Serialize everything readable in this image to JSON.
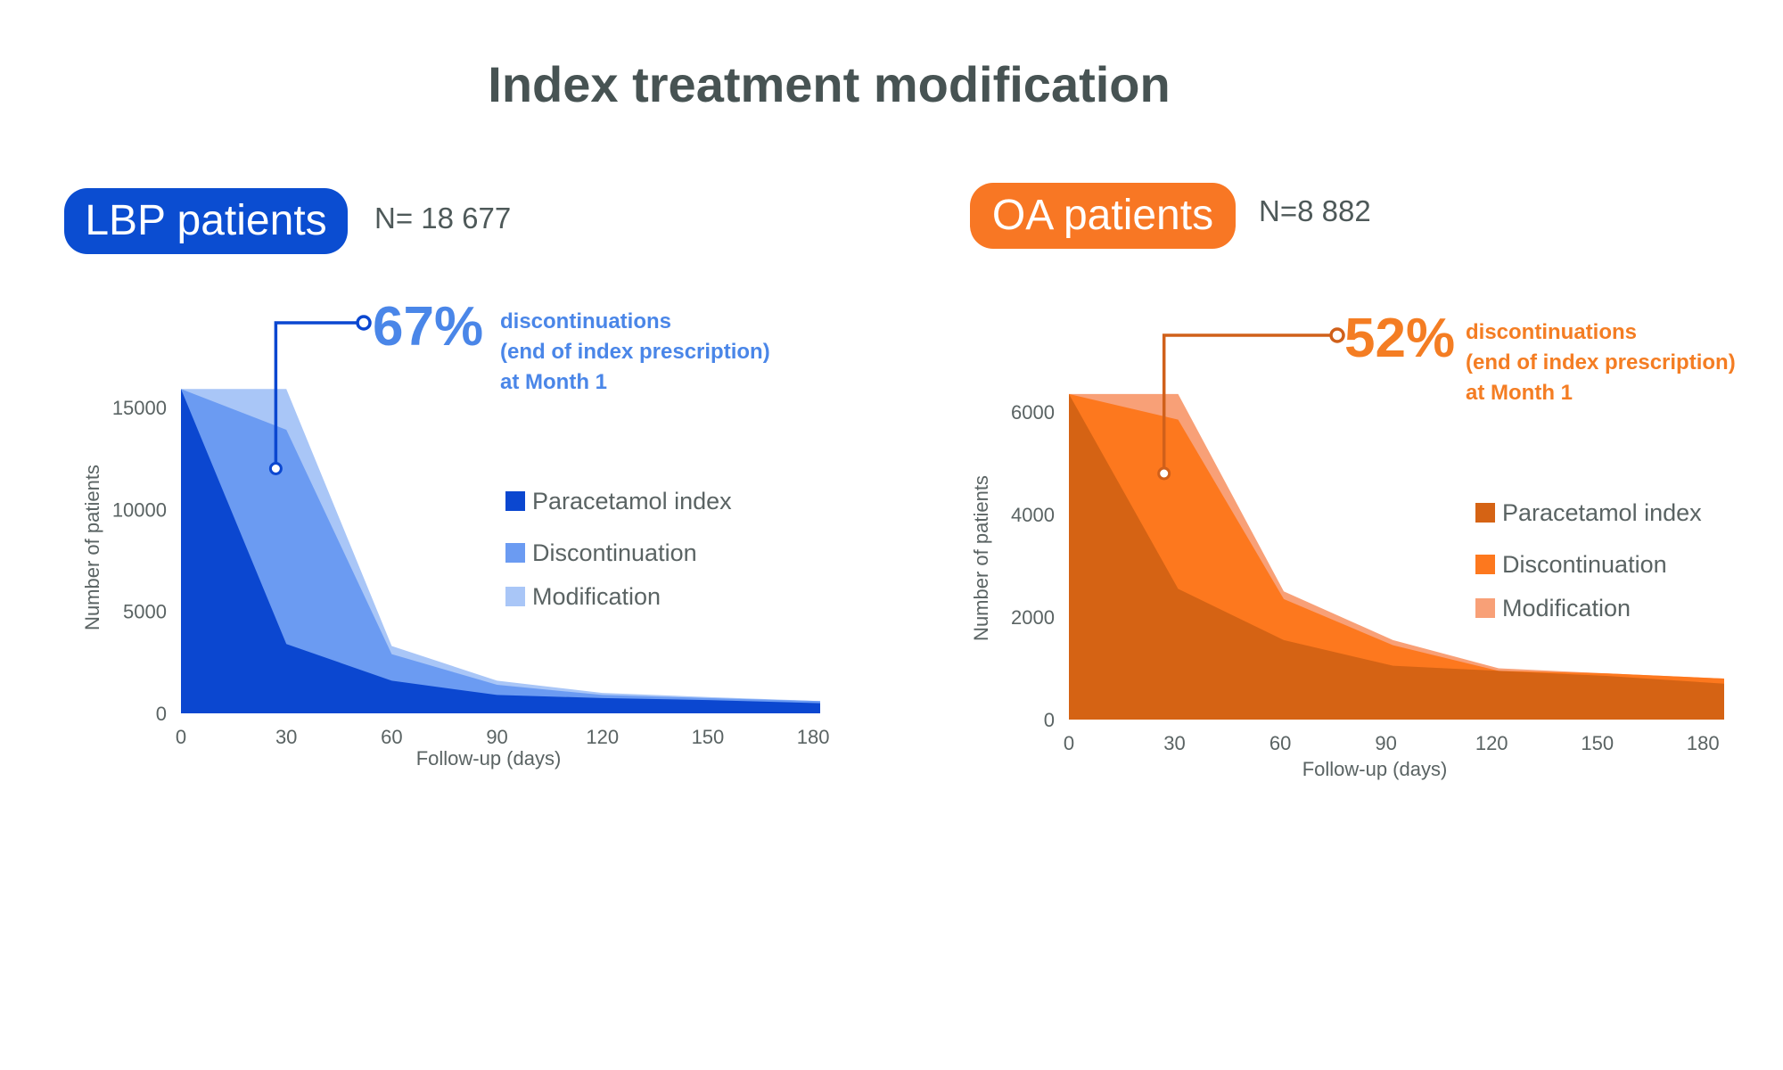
{
  "title": "Index treatment modification",
  "panels": [
    {
      "id": "lbp",
      "label": "LBP patients",
      "n_text": "N= 18 677",
      "callout_value": "67%",
      "callout_lines": [
        "discontinuations",
        "(end of index prescription)",
        "at Month 1"
      ]
    },
    {
      "id": "oa",
      "label": "OA patients",
      "n_text": "N=8 882",
      "callout_value": "52%",
      "callout_lines": [
        "discontinuations",
        "(end of index prescription)",
        "at Month 1"
      ]
    }
  ],
  "chart_data": [
    {
      "type": "area",
      "title": "LBP patients",
      "xlabel": "Follow-up (days)",
      "ylabel": "Number of patients",
      "xlim": [
        0,
        182
      ],
      "ylim": [
        0,
        16000
      ],
      "x_ticks": [
        0,
        30,
        60,
        90,
        120,
        150,
        180
      ],
      "y_ticks": [
        0,
        5000,
        10000,
        15000
      ],
      "legend_position": "right",
      "series": [
        {
          "name": "Modification",
          "color": "#a9c6f7",
          "x": [
            0,
            30,
            60,
            90,
            120,
            150,
            182
          ],
          "values": [
            15900,
            15900,
            3300,
            1600,
            1000,
            800,
            600
          ]
        },
        {
          "name": "Discontinuation",
          "color": "#6b9bf2",
          "x": [
            0,
            30,
            60,
            90,
            120,
            150,
            182
          ],
          "values": [
            15900,
            13900,
            2900,
            1400,
            900,
            750,
            600
          ]
        },
        {
          "name": "Paracetamol index",
          "color": "#0b47d0",
          "x": [
            0,
            30,
            60,
            90,
            120,
            150,
            182
          ],
          "values": [
            15900,
            3400,
            1600,
            900,
            750,
            650,
            500
          ]
        }
      ],
      "legend": [
        "Paracetamol index",
        "Discontinuation",
        "Modification"
      ],
      "callout_point": {
        "x": 27,
        "y": 12000
      },
      "accent": "#0b47d0",
      "callout_color": "#4a86e8"
    },
    {
      "type": "area",
      "title": "OA patients",
      "xlabel": "Follow-up (days)",
      "ylabel": "Number of patients",
      "xlim": [
        0,
        186
      ],
      "ylim": [
        0,
        6000
      ],
      "x_ticks": [
        0,
        30,
        60,
        90,
        120,
        150,
        180
      ],
      "y_ticks": [
        0,
        2000,
        4000,
        6000
      ],
      "legend_position": "right",
      "series": [
        {
          "name": "Modification",
          "color": "#f8a077",
          "x": [
            0,
            31,
            61,
            92,
            122,
            153,
            186
          ],
          "values": [
            6350,
            6350,
            2500,
            1550,
            1000,
            900,
            800
          ]
        },
        {
          "name": "Discontinuation",
          "color": "#fd781e",
          "x": [
            0,
            31,
            61,
            92,
            122,
            153,
            186
          ],
          "values": [
            6350,
            5850,
            2350,
            1450,
            950,
            900,
            800
          ]
        },
        {
          "name": "Paracetamol index",
          "color": "#d56314",
          "x": [
            0,
            31,
            61,
            92,
            122,
            153,
            186
          ],
          "values": [
            6350,
            2550,
            1550,
            1050,
            950,
            850,
            700
          ]
        }
      ],
      "legend": [
        "Paracetamol index",
        "Discontinuation",
        "Modification"
      ],
      "callout_point": {
        "x": 27,
        "y": 4800
      },
      "accent": "#d0601a",
      "callout_color": "#f47d23"
    }
  ]
}
